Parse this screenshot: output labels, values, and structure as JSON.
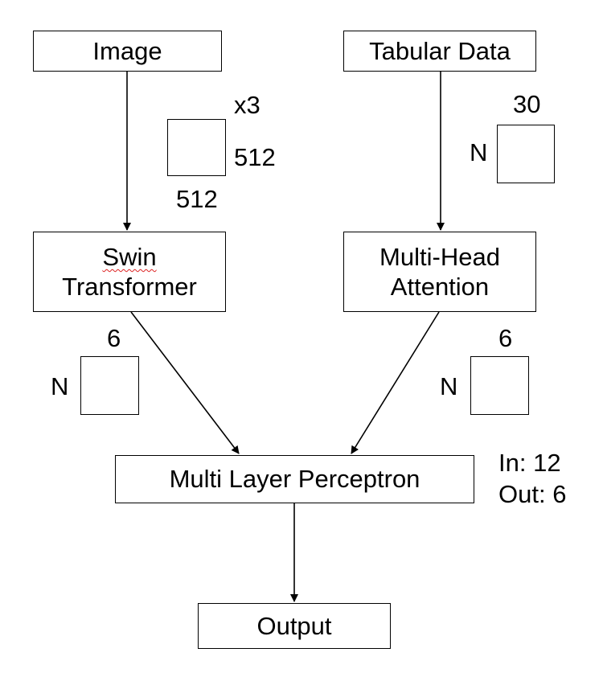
{
  "nodes": {
    "image": "Image",
    "tabular": "Tabular Data",
    "swin_line1": "Swin",
    "swin_line2": "Transformer",
    "mha_line1": "Multi-Head",
    "mha_line2": "Attention",
    "mlp": "Multi Layer Perceptron",
    "output": "Output"
  },
  "shapes": {
    "image_channels": "x3",
    "image_height": "512",
    "image_width": "512",
    "tabular_cols": "30",
    "tabular_rows": "N",
    "swin_out_cols": "6",
    "swin_out_rows": "N",
    "mha_out_cols": "6",
    "mha_out_rows": "N"
  },
  "mlp_spec": {
    "in": "In: 12",
    "out": "Out: 6"
  },
  "colors": {
    "stroke": "#000000",
    "spellcheck_underline": "#dd2222"
  }
}
